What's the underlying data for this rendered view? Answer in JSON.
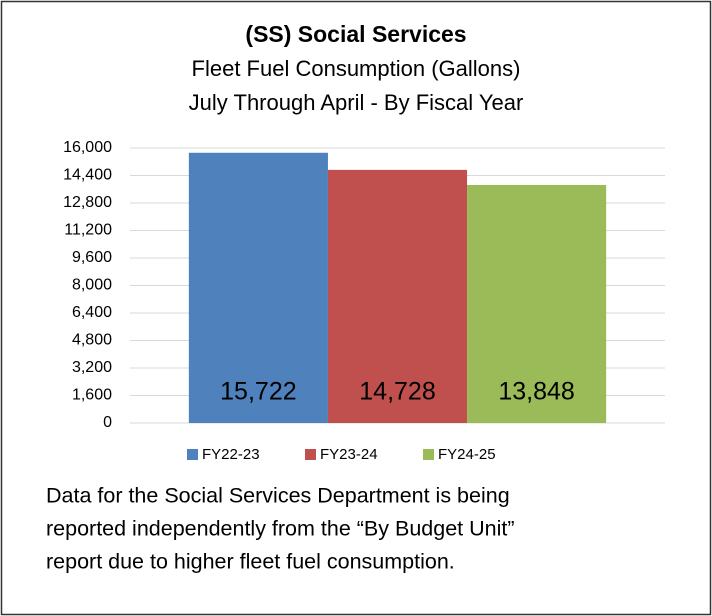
{
  "chart_data": {
    "type": "bar",
    "title": "(SS) Social Services",
    "subtitle": [
      "Fleet Fuel Consumption (Gallons)",
      "July Through April - By Fiscal Year"
    ],
    "categories": [
      null
    ],
    "series": [
      {
        "name": "FY22-23",
        "color": "#4f81bd",
        "values": [
          15722
        ],
        "value_labels": [
          "15,722"
        ]
      },
      {
        "name": "FY23-24",
        "color": "#c0504d",
        "values": [
          14728
        ],
        "value_labels": [
          "14,728"
        ]
      },
      {
        "name": "FY24-25",
        "color": "#9bbb59",
        "values": [
          13848
        ],
        "value_labels": [
          "13,848"
        ]
      }
    ],
    "ylim": [
      0,
      16000
    ],
    "yticks": [
      0,
      {
        "value": 1600,
        "label": "1,600"
      },
      {
        "value": 3200,
        "label": "3,200"
      },
      {
        "value": 4800,
        "label": "4,800"
      },
      {
        "value": 6400,
        "label": "6,400"
      },
      {
        "value": 8000,
        "label": "8,000"
      },
      {
        "value": 9600,
        "label": "9,600"
      },
      {
        "value": 11200,
        "label": "11,200"
      },
      {
        "value": 12800,
        "label": "12,800"
      },
      {
        "value": 14400,
        "label": "14,400"
      },
      {
        "value": 16000,
        "label": "16,000"
      }
    ],
    "grid": true,
    "legend": "bottom",
    "annotations": [
      "Data for the Social Services Department is being",
      "reported independently from the “By Budget Unit”",
      "report due to higher fleet fuel consumption."
    ]
  }
}
